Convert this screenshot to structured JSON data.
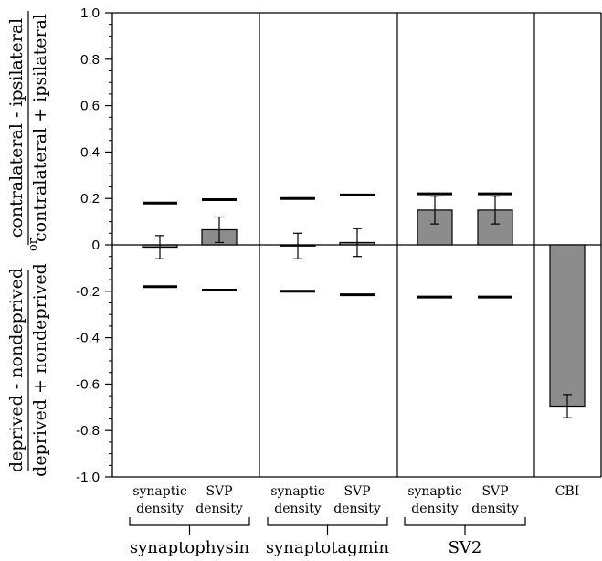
{
  "chart_data": {
    "type": "bar",
    "ylim": [
      -1.0,
      1.0
    ],
    "yticks": [
      "1.0",
      "0.8",
      "0.6",
      "0.4",
      "0.2",
      "0",
      "-0.2",
      "-0.4",
      "-0.6",
      "-0.8",
      "-1.0"
    ],
    "ylabel": {
      "top_numerator": "contralateral - ipsilateral",
      "top_denominator": "contralateral + ipsilateral",
      "or": "or",
      "bottom_numerator": "deprived - nondeprived",
      "bottom_denominator": "deprived + nondeprived"
    },
    "grid": false,
    "groups": [
      {
        "name": "synaptophysin",
        "categories": [
          {
            "line1": "synaptic",
            "line2": "density",
            "value": -0.01,
            "error": 0.05,
            "upper_limit": 0.18,
            "lower_limit": -0.18
          },
          {
            "line1": "SVP",
            "line2": "density",
            "value": 0.065,
            "error": 0.055,
            "upper_limit": 0.195,
            "lower_limit": -0.195
          }
        ]
      },
      {
        "name": "synaptotagmin",
        "categories": [
          {
            "line1": "synaptic",
            "line2": "density",
            "value": -0.005,
            "error": 0.055,
            "upper_limit": 0.2,
            "lower_limit": -0.2
          },
          {
            "line1": "SVP",
            "line2": "density",
            "value": 0.01,
            "error": 0.06,
            "upper_limit": 0.215,
            "lower_limit": -0.215
          }
        ]
      },
      {
        "name": "SV2",
        "categories": [
          {
            "line1": "synaptic",
            "line2": "density",
            "value": 0.15,
            "error": 0.06,
            "upper_limit": 0.22,
            "lower_limit": -0.225
          },
          {
            "line1": "SVP",
            "line2": "density",
            "value": 0.15,
            "error": 0.06,
            "upper_limit": 0.22,
            "lower_limit": -0.225
          }
        ]
      },
      {
        "name": "",
        "categories": [
          {
            "line1": "CBI",
            "line2": "",
            "value": -0.695,
            "error": 0.05
          }
        ]
      }
    ],
    "bar_color": "#8c8c8c"
  }
}
